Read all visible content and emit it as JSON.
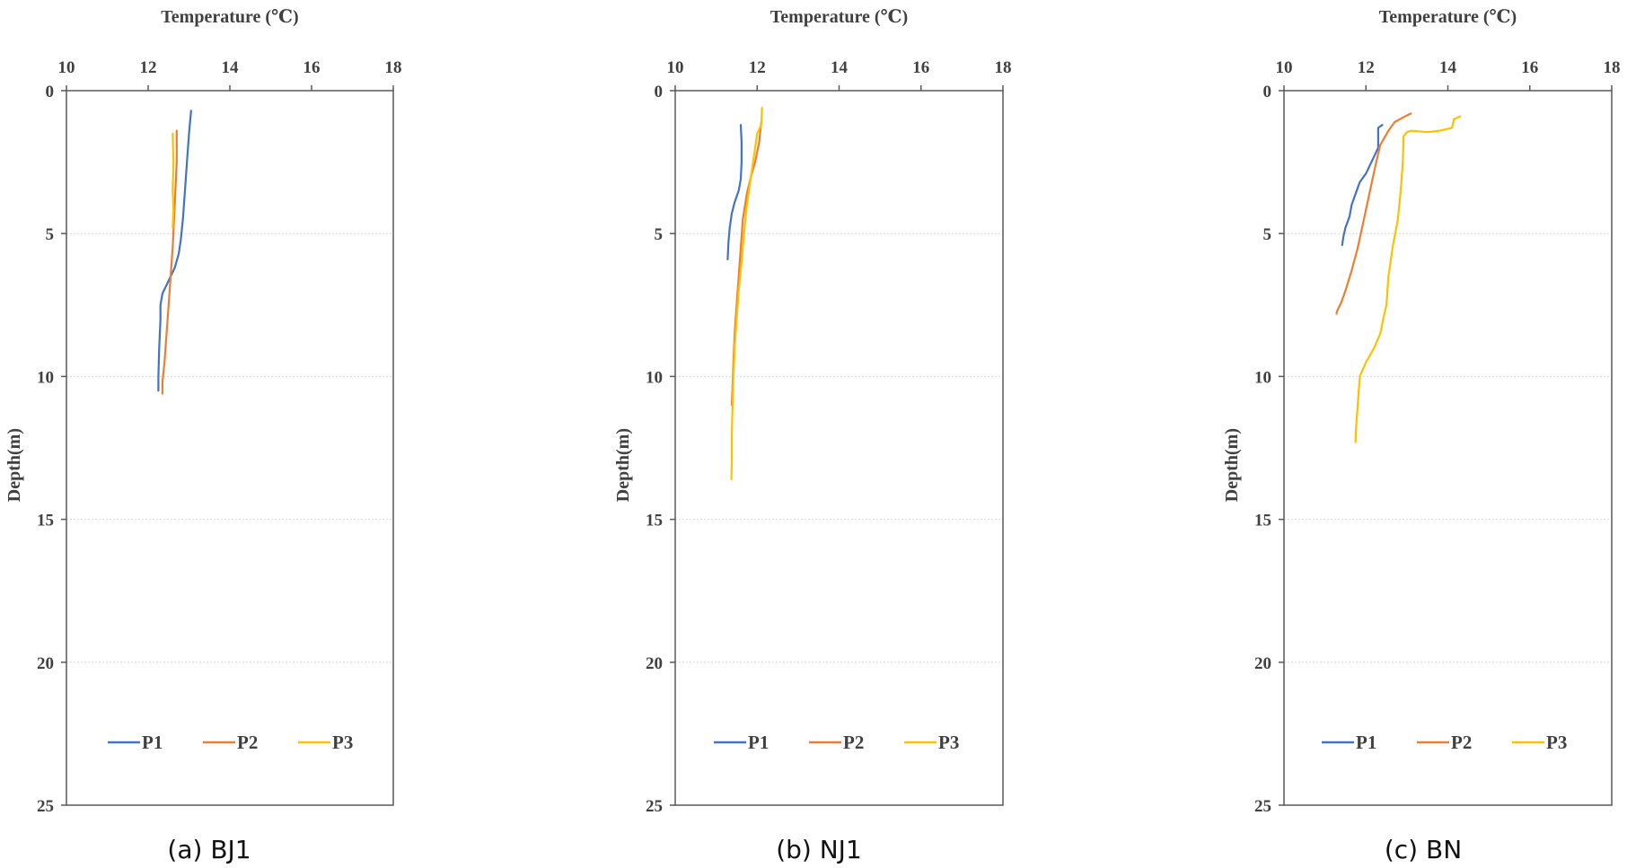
{
  "chart_data": [
    {
      "type": "line",
      "caption": "(a) BJ1",
      "xlabel": "Temperature (℃)",
      "ylabel": "Depth(m)",
      "xlim": [
        10,
        18
      ],
      "ylim": [
        0,
        25
      ],
      "y_reversed": true,
      "x_axis_position": "top",
      "xticks": [
        10,
        12,
        14,
        16,
        18
      ],
      "yticks": [
        0,
        5,
        10,
        15,
        20,
        25
      ],
      "grid": true,
      "legend_position": "bottom",
      "series": [
        {
          "name": "P1",
          "color": "#4472C4",
          "x": [
            13.05,
            13.0,
            12.95,
            12.9,
            12.85,
            12.8,
            12.75,
            12.65,
            12.55,
            12.45,
            12.35,
            12.3,
            12.3,
            12.27,
            12.25,
            12.25
          ],
          "y": [
            0.7,
            1.5,
            2.5,
            3.5,
            4.5,
            5.2,
            5.7,
            6.2,
            6.5,
            6.8,
            7.1,
            7.5,
            8.0,
            9.0,
            10.0,
            10.5
          ]
        },
        {
          "name": "P2",
          "color": "#ED7D31",
          "x": [
            12.7,
            12.7,
            12.65,
            12.6,
            12.55,
            12.5,
            12.45,
            12.4,
            12.35,
            12.35
          ],
          "y": [
            1.4,
            2.5,
            4.0,
            5.5,
            6.5,
            7.5,
            8.5,
            9.5,
            10.2,
            10.6
          ]
        },
        {
          "name": "P3",
          "color": "#FFC000",
          "x": [
            12.6,
            12.62,
            12.6,
            12.62,
            12.6
          ],
          "y": [
            1.5,
            2.5,
            3.5,
            4.2,
            4.8
          ]
        }
      ]
    },
    {
      "type": "line",
      "caption": "(b) NJ1",
      "xlabel": "Temperature (℃)",
      "ylabel": "Depth(m)",
      "xlim": [
        10,
        18
      ],
      "ylim": [
        0,
        25
      ],
      "y_reversed": true,
      "x_axis_position": "top",
      "xticks": [
        10,
        12,
        14,
        16,
        18
      ],
      "yticks": [
        0,
        5,
        10,
        15,
        20,
        25
      ],
      "grid": true,
      "legend_position": "bottom",
      "series": [
        {
          "name": "P1",
          "color": "#4472C4",
          "x": [
            11.6,
            11.62,
            11.62,
            11.6,
            11.55,
            11.45,
            11.38,
            11.33,
            11.3,
            11.28
          ],
          "y": [
            1.2,
            1.8,
            2.5,
            3.1,
            3.5,
            3.9,
            4.3,
            4.8,
            5.3,
            5.9
          ]
        },
        {
          "name": "P2",
          "color": "#ED7D31",
          "x": [
            12.1,
            12.05,
            11.95,
            11.85,
            11.75,
            11.65,
            11.6,
            11.55,
            11.5,
            11.45,
            11.42,
            11.4,
            11.38
          ],
          "y": [
            1.1,
            1.8,
            2.5,
            3.0,
            3.6,
            4.5,
            5.5,
            6.5,
            7.5,
            8.5,
            9.5,
            10.3,
            11.0
          ]
        },
        {
          "name": "P3",
          "color": "#FFC000",
          "x": [
            12.12,
            12.1,
            12.0,
            11.95,
            11.9,
            11.85,
            11.75,
            11.68,
            11.62,
            11.55,
            11.5,
            11.45,
            11.42,
            11.4,
            11.38,
            11.38,
            11.37
          ],
          "y": [
            0.6,
            1.2,
            1.5,
            2.0,
            2.5,
            3.0,
            4.0,
            5.0,
            6.0,
            7.0,
            8.0,
            9.0,
            10.0,
            11.0,
            12.0,
            13.0,
            13.6
          ]
        }
      ]
    },
    {
      "type": "line",
      "caption": "(c) BN",
      "xlabel": "Temperature (℃)",
      "ylabel": "Depth(m)",
      "xlim": [
        10,
        18
      ],
      "ylim": [
        0,
        25
      ],
      "y_reversed": true,
      "x_axis_position": "top",
      "xticks": [
        10,
        12,
        14,
        16,
        18
      ],
      "yticks": [
        0,
        5,
        10,
        15,
        20,
        25
      ],
      "grid": true,
      "legend_position": "bottom",
      "series": [
        {
          "name": "P1",
          "color": "#4472C4",
          "x": [
            12.4,
            12.3,
            12.3,
            12.2,
            12.1,
            12.0,
            11.85,
            11.75,
            11.65,
            11.6,
            11.5,
            11.45,
            11.42
          ],
          "y": [
            1.2,
            1.3,
            2.0,
            2.3,
            2.6,
            2.9,
            3.2,
            3.6,
            4.0,
            4.4,
            4.8,
            5.1,
            5.4
          ]
        },
        {
          "name": "P2",
          "color": "#ED7D31",
          "x": [
            13.1,
            12.95,
            12.7,
            12.55,
            12.35,
            12.25,
            12.1,
            11.95,
            11.8,
            11.65,
            11.5,
            11.4,
            11.3,
            11.28
          ],
          "y": [
            0.8,
            0.9,
            1.1,
            1.4,
            1.9,
            2.5,
            3.5,
            4.5,
            5.5,
            6.3,
            7.0,
            7.4,
            7.7,
            7.8
          ]
        },
        {
          "name": "P3",
          "color": "#FFC000",
          "x": [
            14.3,
            14.15,
            14.1,
            13.8,
            13.5,
            13.1,
            13.0,
            12.92,
            12.9,
            12.85,
            12.78,
            12.65,
            12.55,
            12.5,
            12.42,
            12.35,
            12.2,
            12.0,
            11.85,
            11.8,
            11.75,
            11.75
          ],
          "y": [
            0.9,
            1.0,
            1.3,
            1.4,
            1.45,
            1.4,
            1.45,
            1.6,
            2.5,
            3.5,
            4.5,
            5.5,
            6.5,
            7.5,
            8.0,
            8.5,
            9.0,
            9.5,
            10.0,
            11.0,
            12.0,
            12.3
          ]
        }
      ]
    }
  ]
}
